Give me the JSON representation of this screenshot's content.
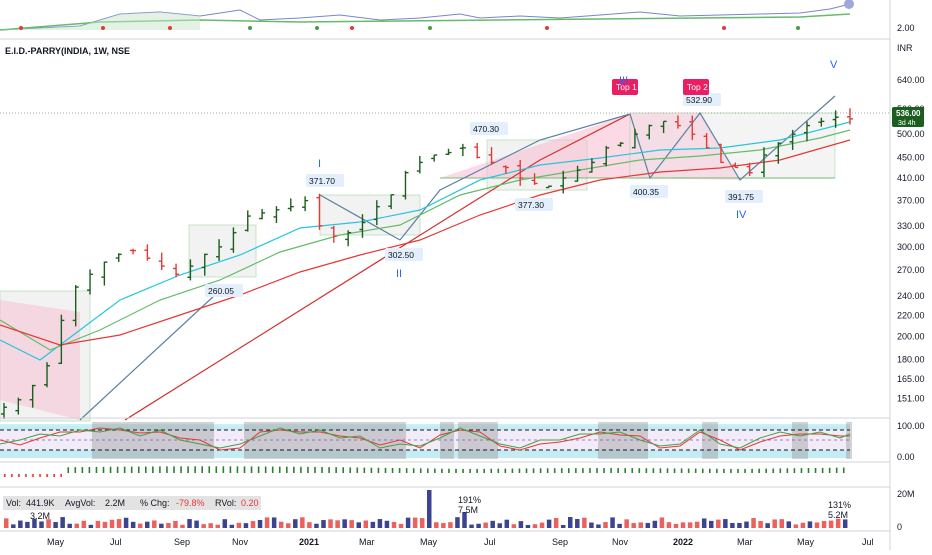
{
  "title": "E.I.D.-PARRY(INDIA, 1W, NSE",
  "currency": "INR",
  "price_tag": {
    "value": "536.00",
    "sub": "3d 4h"
  },
  "price_axis": [
    "640.00",
    "560.00",
    "500.00",
    "450.00",
    "410.00",
    "370.00",
    "330.00",
    "300.00",
    "270.00",
    "240.00",
    "220.00",
    "200.00",
    "180.00",
    "165.00",
    "151.00"
  ],
  "top_indicator_axis": "2.00",
  "osc_axis": [
    "100.00",
    "0.00"
  ],
  "vol_axis": [
    "20M",
    "0"
  ],
  "x_labels": [
    "May",
    "Jul",
    "Sep",
    "Nov",
    "2021",
    "Mar",
    "May",
    "Jul",
    "Sep",
    "Nov",
    "2022",
    "Mar",
    "May",
    "Jul"
  ],
  "peak_labels": [
    "260.05",
    "371.70",
    "302.50",
    "470.30",
    "377.30",
    "400.35",
    "532.90",
    "391.75"
  ],
  "wave_labels": [
    "I",
    "II",
    "III",
    "IV",
    "V"
  ],
  "top_labels": [
    "Top 1",
    "Top 2"
  ],
  "volume_stats": {
    "vol_label": "Vol:",
    "vol_value": "441.9K",
    "avgvol_label": "AvgVol:",
    "avgvol_value": "2.2M",
    "chg_label": "% Chg:",
    "chg_value": "-79.8%",
    "rvol_label": "RVol:",
    "rvol_value": "0.20"
  },
  "volume_annotations": [
    "3.2M",
    "191%",
    "7.5M",
    "131%",
    "5.2M"
  ],
  "colors": {
    "up": "#1b5e20",
    "down": "#e53935",
    "ema_fast": "#26c6da",
    "ema_mid": "#66bb6a",
    "ema_slow": "#e53935",
    "trend_blue": "#5b7fa6",
    "trend_red": "#d32f2f",
    "box_green": "#4caf50",
    "osc_bg": "#d1c4e9",
    "osc_band": "#80deea",
    "tag_bg": "#e3effd",
    "wave": "#2962ff",
    "top_bg": "#e91e63"
  },
  "chart_data": {
    "type": "candlestick",
    "timeframe": "1W",
    "y_scale": "log",
    "ylim": [
      140,
      700
    ],
    "x_range": [
      "2020-04",
      "2022-07"
    ],
    "grid": false,
    "series_labels": {
      "swing_points": [
        {
          "label": "260.05",
          "value": 260.05
        },
        {
          "label": "371.70",
          "value": 371.7
        },
        {
          "label": "302.50",
          "value": 302.5
        },
        {
          "label": "470.30",
          "value": 470.3
        },
        {
          "label": "377.30",
          "value": 377.3
        },
        {
          "label": "400.35",
          "value": 400.35
        },
        {
          "label": "532.90",
          "value": 532.9
        },
        {
          "label": "391.75",
          "value": 391.75
        }
      ],
      "elliott_waves": [
        "I",
        "II",
        "III",
        "IV",
        "V"
      ]
    },
    "close_path": [
      145,
      150,
      160,
      175,
      215,
      250,
      265,
      280,
      290,
      295,
      285,
      275,
      265,
      275,
      290,
      300,
      320,
      345,
      350,
      355,
      360,
      370,
      330,
      315,
      320,
      335,
      360,
      380,
      420,
      440,
      455,
      460,
      470,
      450,
      440,
      430,
      410,
      400,
      395,
      410,
      425,
      440,
      470,
      480,
      500,
      520,
      530,
      520,
      500,
      470,
      440,
      430,
      420,
      455,
      480,
      500,
      520,
      530,
      540,
      536
    ],
    "last_price": 536.0,
    "volume": {
      "last": "441.9K",
      "avg": "2.2M",
      "change_pct": -79.8,
      "rvol": 0.2
    }
  }
}
